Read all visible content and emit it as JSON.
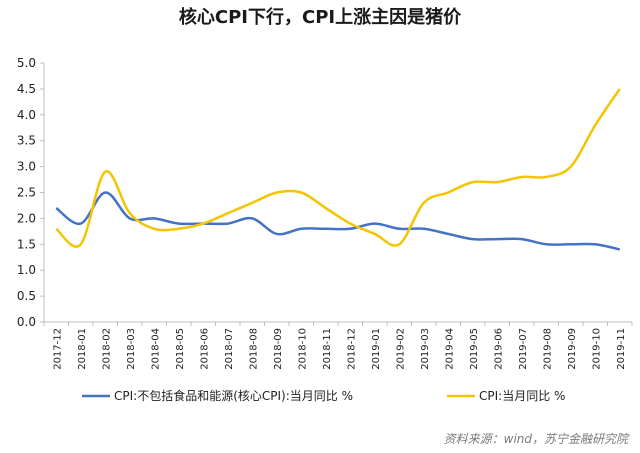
{
  "title": "核心CPI下行，CPI上涨主因是猪价",
  "source": "资料来源：wind，苏宁金融研究院",
  "chart_data": {
    "type": "line",
    "title": "核心CPI下行，CPI上涨主因是猪价",
    "xlabel": "",
    "ylabel": "",
    "ylim": [
      0,
      5.0
    ],
    "yticks": [
      0.0,
      0.5,
      1.0,
      1.5,
      2.0,
      2.5,
      3.0,
      3.5,
      4.0,
      4.5,
      5.0
    ],
    "grid": false,
    "legend": "bottom",
    "categories": [
      "2017-12",
      "2018-01",
      "2018-02",
      "2018-03",
      "2018-04",
      "2018-05",
      "2018-06",
      "2018-07",
      "2018-08",
      "2018-09",
      "2018-10",
      "2018-11",
      "2018-12",
      "2019-01",
      "2019-02",
      "2019-03",
      "2019-04",
      "2019-05",
      "2019-06",
      "2019-07",
      "2019-08",
      "2019-09",
      "2019-10",
      "2019-11"
    ],
    "series": [
      {
        "name": "CPI:不包括食品和能源(核心CPI):当月同比  %",
        "color": "#4472C4",
        "values": [
          2.2,
          1.9,
          2.5,
          2.0,
          2.0,
          1.9,
          1.9,
          1.9,
          2.0,
          1.7,
          1.8,
          1.8,
          1.8,
          1.9,
          1.8,
          1.8,
          1.7,
          1.6,
          1.6,
          1.6,
          1.5,
          1.5,
          1.5,
          1.4
        ]
      },
      {
        "name": "CPI:当月同比  %",
        "color": "#F5C400",
        "values": [
          1.8,
          1.5,
          2.9,
          2.1,
          1.8,
          1.8,
          1.9,
          2.1,
          2.3,
          2.5,
          2.5,
          2.2,
          1.9,
          1.7,
          1.5,
          2.3,
          2.5,
          2.7,
          2.7,
          2.8,
          2.8,
          3.0,
          3.8,
          4.5
        ]
      }
    ]
  }
}
